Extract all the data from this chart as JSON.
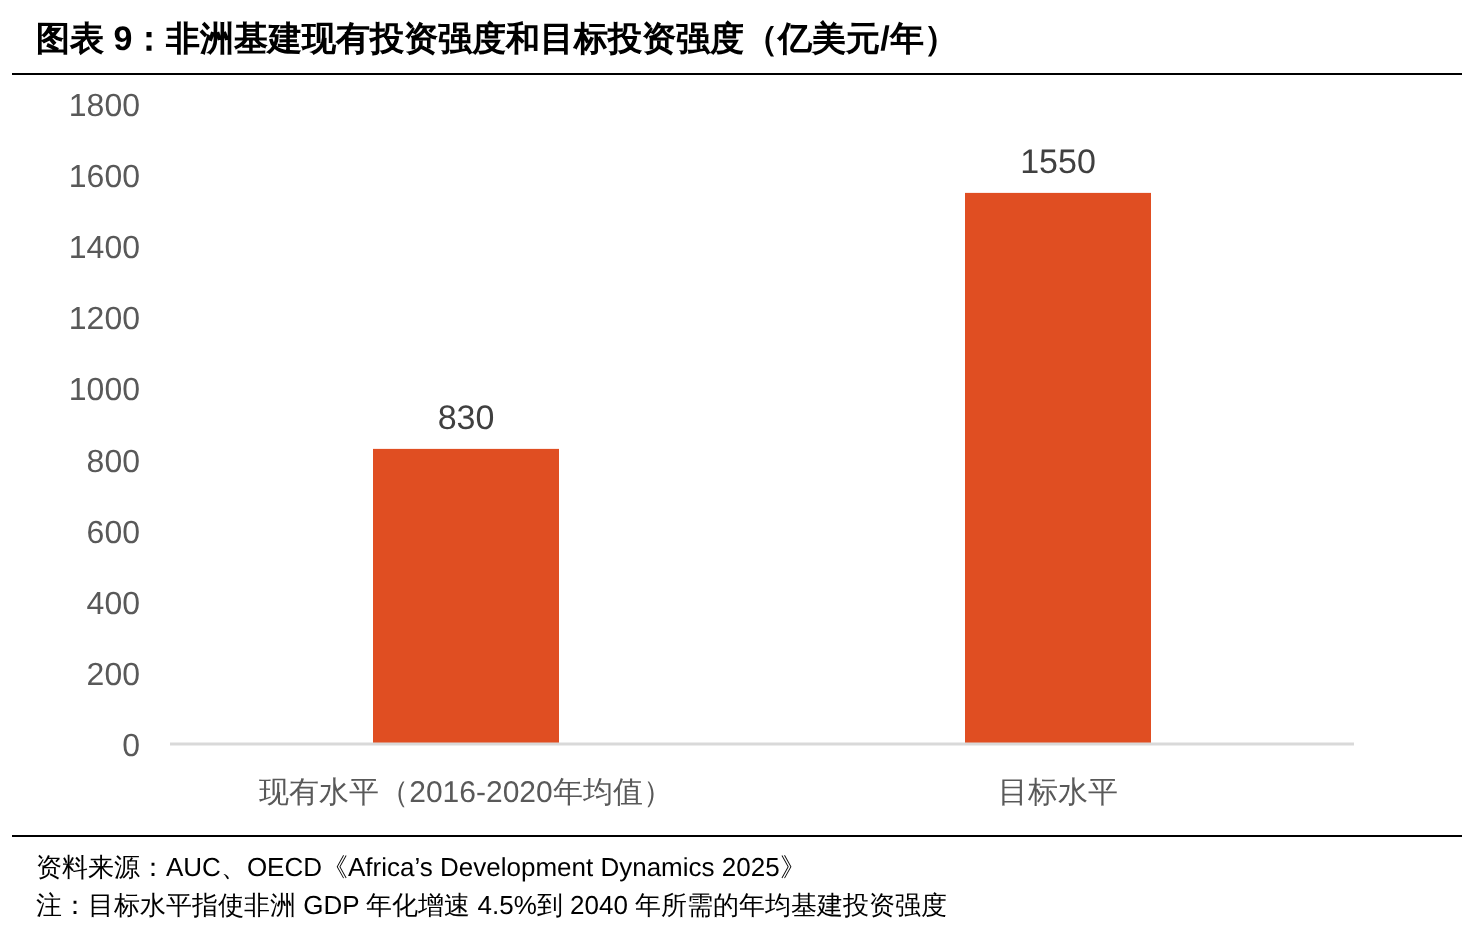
{
  "chart_data": {
    "type": "bar",
    "title": "图表 9：非洲基建现有投资强度和目标投资强度（亿美元/年）",
    "categories": [
      "现有水平（2016-2020年均值）",
      "目标水平"
    ],
    "values": [
      830,
      1550
    ],
    "color": "#e04e22",
    "ylim": [
      0,
      1800
    ],
    "yticks": [
      0,
      200,
      400,
      600,
      800,
      1000,
      1200,
      1400,
      1600,
      1800
    ],
    "data_labels": true,
    "annotations": [
      "资料来源：AUC、OECD《Africa’s Development Dynamics 2025》",
      "注：目标水平指使非洲 GDP 年化增速 4.5%到 2040 年所需的年均基建投资强度"
    ]
  }
}
